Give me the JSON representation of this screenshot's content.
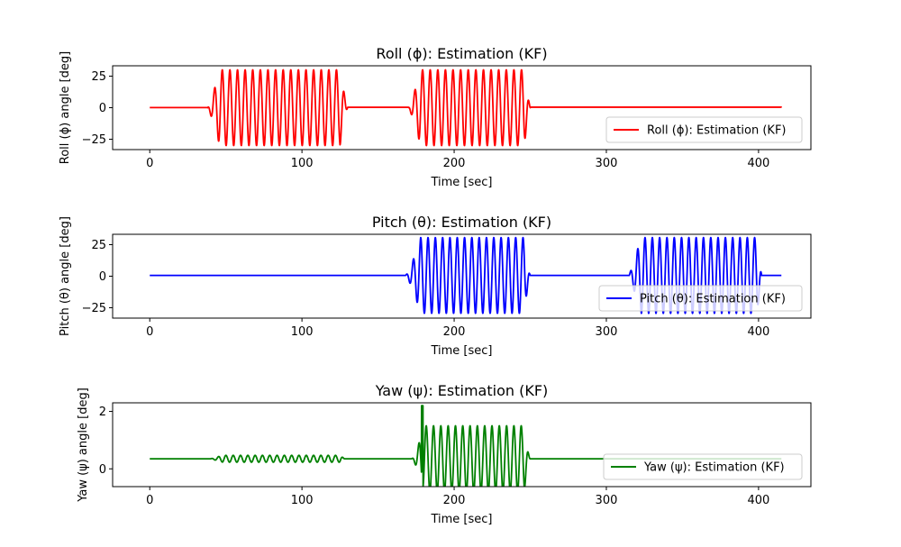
{
  "chart_data": [
    {
      "type": "line",
      "title": "Roll (ϕ): Estimation (KF)",
      "xlabel": "Time [sec]",
      "ylabel": "Roll (ϕ) angle [deg]",
      "xlim": [
        -24.4,
        434.4
      ],
      "ylim": [
        -33.2,
        33.2
      ],
      "xticks": [
        0,
        100,
        200,
        300,
        400
      ],
      "yticks": [
        -25,
        0,
        25
      ],
      "legend_location": "lower right",
      "color": "#ff0000",
      "series": [
        {
          "name": "Roll (ϕ): Estimation (KF)",
          "baseline": 0,
          "duration": 415,
          "bursts": [
            {
              "start": 38,
              "end": 130,
              "amplitude": 30,
              "period": 5.0,
              "phase": 2.0,
              "full_from": 46,
              "full_to": 125,
              "decay": 1.2
            }
          ],
          "bursts_2": [
            {
              "start": 170,
              "end": 250,
              "amplitude": 30,
              "period": 5.0,
              "phase": 2.5,
              "full_from": 178,
              "full_to": 246,
              "decay": 1.2
            }
          ],
          "offsets": [
            {
              "from": 0,
              "to": 38,
              "value": 0.1
            },
            {
              "from": 130,
              "to": 170,
              "value": 0.3
            },
            {
              "from": 250,
              "to": 415,
              "value": 0.4
            }
          ]
        }
      ]
    },
    {
      "type": "line",
      "title": "Pitch (θ): Estimation (KF)",
      "xlabel": "Time [sec]",
      "ylabel": "Pitch (θ) angle [deg]",
      "xlim": [
        -24.4,
        434.4
      ],
      "ylim": [
        -33.2,
        33.2
      ],
      "xticks": [
        0,
        100,
        200,
        300,
        400
      ],
      "yticks": [
        -25,
        0,
        25
      ],
      "legend_location": "lower right",
      "color": "#0000ff",
      "series": [
        {
          "name": "Pitch (θ): Estimation (KF)",
          "baseline": 0.6,
          "duration": 415,
          "bursts": [
            {
              "start": 168,
              "end": 250,
              "amplitude": 30,
              "period": 4.8,
              "phase": 1.0,
              "full_from": 178,
              "full_to": 246,
              "decay": 1.3
            }
          ],
          "bursts_2": [
            {
              "start": 315,
              "end": 402,
              "amplitude": 30,
              "period": 4.8,
              "phase": 0.5,
              "full_from": 323,
              "full_to": 399,
              "decay": 1.0
            }
          ],
          "offsets": []
        }
      ]
    },
    {
      "type": "line",
      "title": "Yaw (ψ): Estimation (KF)",
      "xlabel": "Time [sec]",
      "ylabel": "Yaw (ψ) angle [deg]",
      "xlim": [
        -24.4,
        434.4
      ],
      "ylim": [
        -0.62,
        2.3
      ],
      "xticks": [
        0,
        100,
        200,
        300,
        400
      ],
      "yticks": [
        0,
        2
      ],
      "legend_location": "lower right",
      "color": "#008000",
      "series": [
        {
          "name": "Yaw (ψ): Estimation (KF)",
          "baseline": 0.35,
          "duration": 415,
          "bursts": [
            {
              "start": 40,
              "end": 128,
              "amplitude": 0.12,
              "period": 4.8,
              "phase": 1.0,
              "full_from": 48,
              "full_to": 125,
              "decay": 1.0
            }
          ],
          "bursts_2": [
            {
              "start": 172,
              "end": 250,
              "amplitude": 1.15,
              "period": 4.8,
              "phase": 1.5,
              "full_from": 180,
              "full_to": 246,
              "decay": 1.5
            }
          ],
          "offsets": [],
          "peak": {
            "t": 179,
            "value": 2.2
          }
        }
      ]
    }
  ]
}
